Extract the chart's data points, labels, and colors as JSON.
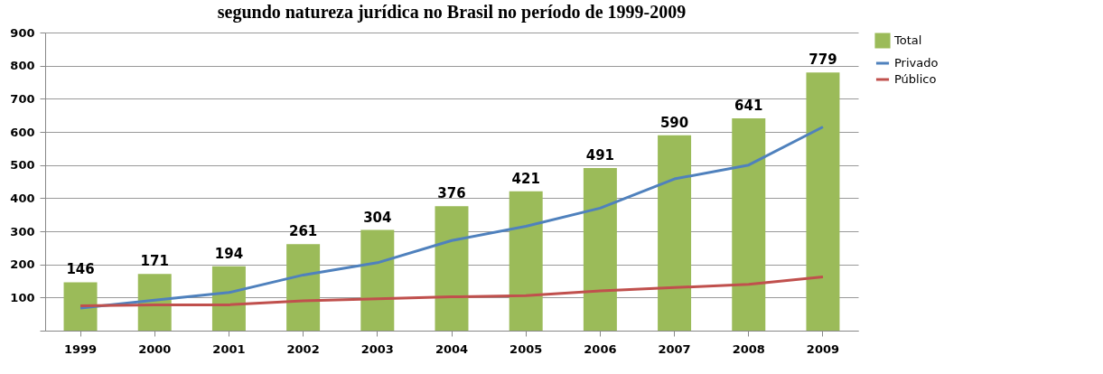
{
  "chart_data": {
    "type": "bar",
    "title": "segundo natureza jurídica no Brasil no período de 1999-2009",
    "categories": [
      "1999",
      "2000",
      "2001",
      "2002",
      "2003",
      "2004",
      "2005",
      "2006",
      "2007",
      "2008",
      "2009"
    ],
    "series": [
      {
        "name": "Total",
        "color": "#9bbb59",
        "values": [
          146,
          171,
          194,
          261,
          304,
          376,
          421,
          491,
          590,
          641,
          779
        ],
        "value_labels": [
          "146",
          "171",
          "194",
          "261",
          "304",
          "376",
          "421",
          "491",
          "590",
          "641",
          "779"
        ]
      },
      {
        "name": "Privado",
        "type": "line",
        "color": "#4f81bd",
        "values": [
          68,
          92,
          115,
          168,
          205,
          272,
          315,
          370,
          458,
          500,
          615
        ]
      },
      {
        "name": "Público",
        "type": "line",
        "color": "#c0504d",
        "values": [
          75,
          78,
          78,
          90,
          96,
          102,
          106,
          120,
          130,
          140,
          162
        ]
      }
    ],
    "ylim": [
      0,
      900
    ],
    "yticks": [
      {
        "value": 0,
        "label": null
      },
      100,
      200,
      300,
      400,
      500,
      600,
      700,
      800,
      900
    ],
    "grid": "y",
    "legend": "right",
    "marker": "none"
  }
}
